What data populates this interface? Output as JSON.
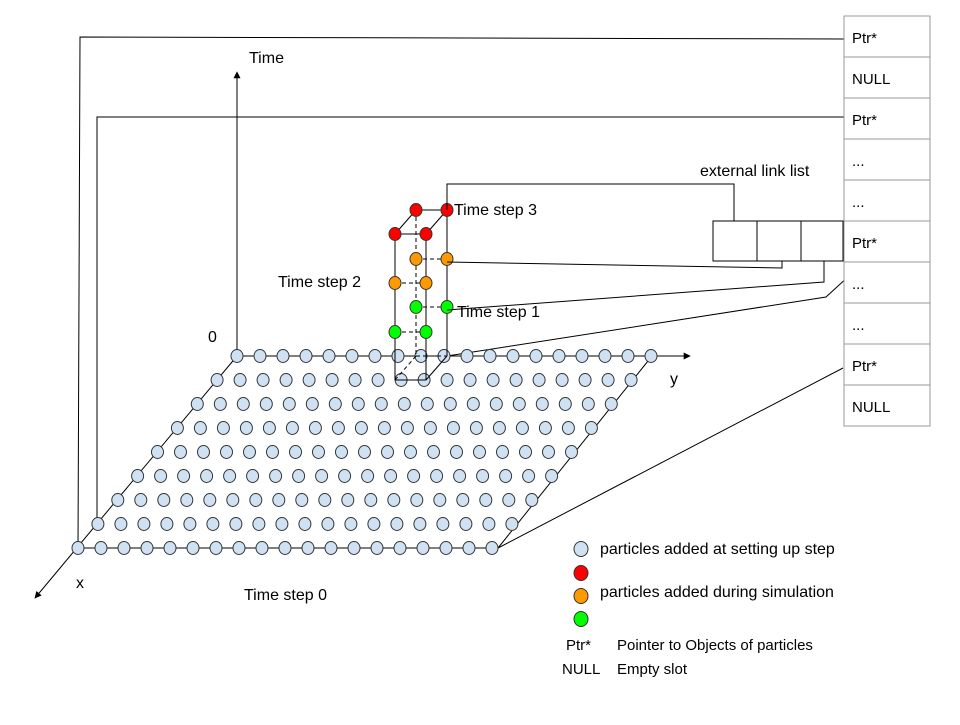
{
  "axes": {
    "time": "Time",
    "origin": "0",
    "x": "x",
    "y": "y"
  },
  "time_steps": {
    "step0": "Time step 0",
    "step1": "Time step 1",
    "step2": "Time step 2",
    "step3": "Time step 3"
  },
  "external_list_label": "external link list",
  "pointer_array": [
    "Ptr*",
    "NULL",
    "Ptr*",
    "...",
    "...",
    "Ptr*",
    "...",
    "...",
    "Ptr*",
    "NULL"
  ],
  "legend": {
    "setup": "particles added at setting up step",
    "simulation": "particles added during simulation",
    "ptr_key": "Ptr*",
    "ptr_desc": "Pointer to Objects of particles",
    "null_key": "NULL",
    "null_desc": "Empty slot"
  },
  "colors": {
    "particle_base": "#cfe2f3",
    "red": "#ff0000",
    "orange": "#ff9900",
    "green": "#00ff00",
    "line": "#000000",
    "cell_border": "#999999"
  }
}
